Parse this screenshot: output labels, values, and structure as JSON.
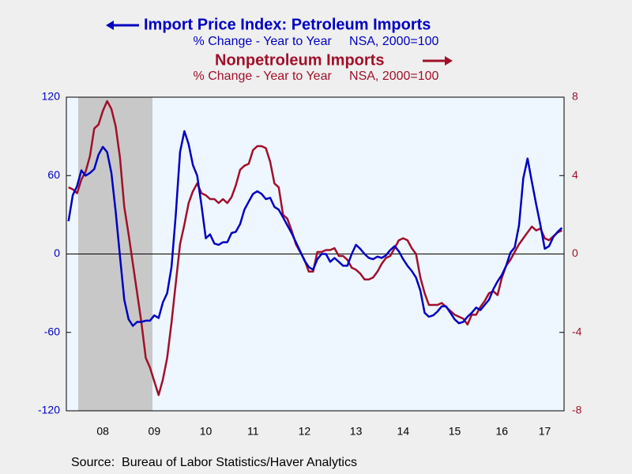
{
  "chart_data": {
    "type": "line",
    "series": [
      {
        "name": "Import Price Index: Petroleum Imports",
        "subtitle": "% Change - Year to Year     NSA, 2000=100",
        "color": "#0000c0",
        "axis": "y",
        "values": [
          25,
          45,
          52,
          64,
          60,
          62,
          65,
          76,
          82,
          78,
          62,
          32,
          -2,
          -35,
          -50,
          -55,
          -52,
          -52,
          -51,
          -51,
          -47,
          -49,
          -37,
          -30,
          -10,
          30,
          78,
          94,
          84,
          68,
          60,
          37,
          12,
          15,
          8,
          7,
          9,
          9,
          16,
          17,
          23,
          34,
          40,
          46,
          48,
          46,
          42,
          43,
          36,
          34,
          28,
          22,
          16,
          9,
          2,
          -5,
          -10,
          -12,
          -4,
          0,
          0,
          -6,
          -3,
          -6,
          -9,
          -9,
          0,
          7,
          4,
          0,
          -3,
          -4,
          -2,
          -3,
          -1,
          3,
          6,
          2,
          -4,
          -9,
          -13,
          -18,
          -28,
          -45,
          -48,
          -47,
          -44,
          -40,
          -40,
          -45,
          -50,
          -53,
          -52,
          -48,
          -45,
          -41,
          -43,
          -39,
          -35,
          -27,
          -21,
          -16,
          -9,
          1,
          5,
          22,
          58,
          73,
          55,
          38,
          22,
          4,
          6,
          13,
          17,
          20
        ]
      },
      {
        "name": "Nonpetroleum Imports",
        "subtitle": "% Change - Year to Year     NSA, 2000=100",
        "color": "#a0102a",
        "axis": "y2",
        "values": [
          3.4,
          3.3,
          3.1,
          3.8,
          4.2,
          5.0,
          6.4,
          6.6,
          7.3,
          7.8,
          7.4,
          6.5,
          4.9,
          2.4,
          1.0,
          -0.5,
          -2.0,
          -3.5,
          -5.3,
          -5.8,
          -6.5,
          -7.2,
          -6.4,
          -5.3,
          -3.5,
          -1.5,
          0.5,
          1.5,
          2.6,
          3.2,
          3.6,
          3.1,
          3.0,
          2.8,
          2.8,
          2.6,
          2.8,
          2.6,
          2.9,
          3.5,
          4.3,
          4.5,
          4.6,
          5.3,
          5.5,
          5.5,
          5.4,
          4.7,
          3.6,
          3.4,
          2.0,
          1.8,
          1.2,
          0.5,
          0.1,
          -0.3,
          -0.9,
          -0.9,
          0.1,
          0.1,
          0.2,
          0.2,
          0.3,
          -0.1,
          -0.1,
          -0.3,
          -0.7,
          -0.8,
          -1.0,
          -1.3,
          -1.3,
          -1.2,
          -0.9,
          -0.5,
          -0.2,
          -0.1,
          0.3,
          0.7,
          0.8,
          0.7,
          0.3,
          0.0,
          -1.2,
          -2.0,
          -2.6,
          -2.6,
          -2.6,
          -2.5,
          -2.7,
          -2.9,
          -3.1,
          -3.2,
          -3.3,
          -3.6,
          -3.1,
          -3.1,
          -2.7,
          -2.4,
          -2.0,
          -1.9,
          -2.1,
          -1.2,
          -0.6,
          -0.3,
          0.1,
          0.5,
          0.8,
          1.1,
          1.4,
          1.2,
          1.3,
          0.8,
          0.7,
          0.9,
          1.1,
          1.2
        ]
      }
    ],
    "categories": [
      null,
      null,
      null,
      null,
      null,
      null,
      null,
      null,
      "08",
      null,
      null,
      null,
      null,
      null,
      null,
      null,
      null,
      null,
      null,
      null,
      "09",
      null,
      null,
      null,
      null,
      null,
      null,
      null,
      null,
      null,
      null,
      null,
      "10",
      null,
      null,
      null,
      null,
      null,
      null,
      null,
      null,
      null,
      null,
      "11",
      null,
      null,
      null,
      null,
      null,
      null,
      null,
      null,
      null,
      null,
      null,
      "12",
      null,
      null,
      null,
      null,
      null,
      null,
      null,
      null,
      null,
      null,
      null,
      "13",
      null,
      null,
      null,
      null,
      null,
      null,
      null,
      null,
      null,
      null,
      "14",
      null,
      null,
      null,
      null,
      null,
      null,
      null,
      null,
      null,
      null,
      null,
      "15",
      null,
      null,
      null,
      null,
      null,
      null,
      null,
      null,
      null,
      null,
      "16",
      null,
      null,
      null,
      null,
      null,
      null,
      null,
      null,
      null,
      "17",
      null,
      null,
      null,
      null
    ],
    "ylim": [
      -120,
      120
    ],
    "yticks": [
      -120,
      -60,
      0,
      60,
      120
    ],
    "y2lim": [
      -8,
      8
    ],
    "y2ticks": [
      -8,
      -4,
      0,
      4,
      8
    ],
    "source": "Source:  Bureau of Labor Statistics/Haver Analytics"
  }
}
